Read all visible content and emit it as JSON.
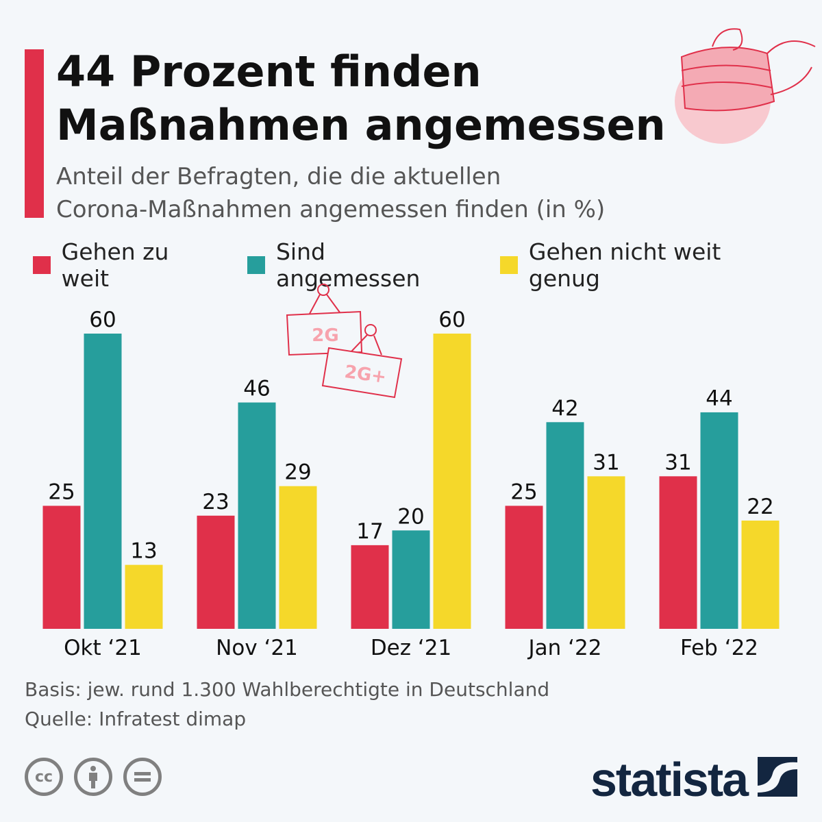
{
  "header": {
    "title_line1": "44 Prozent finden",
    "title_line2": "Maßnahmen angemessen",
    "subtitle_line1": "Anteil der Befragten, die die aktuellen",
    "subtitle_line2": "Corona-Maßnahmen angemessen finden (in %)"
  },
  "illustration": {
    "sign1": "2G",
    "sign2": "2G+"
  },
  "chart_data": {
    "type": "bar",
    "categories": [
      "Okt ‘21",
      "Nov ‘21",
      "Dez ‘21",
      "Jan ‘22",
      "Feb ‘22"
    ],
    "series": [
      {
        "name": "Gehen zu weit",
        "color": "#e0304a",
        "values": [
          25,
          23,
          17,
          25,
          31
        ]
      },
      {
        "name": "Sind angemessen",
        "color": "#269e9c",
        "values": [
          60,
          46,
          20,
          42,
          44
        ]
      },
      {
        "name": "Gehen nicht weit genug",
        "color": "#f5d82a",
        "values": [
          13,
          29,
          60,
          31,
          22
        ]
      }
    ],
    "ylim": [
      0,
      60
    ],
    "grid": false,
    "legend": "top"
  },
  "footer": {
    "basis": "Basis: jew. rund 1.300 Wahlberechtigte in Deutschland",
    "source": "Quelle: Infratest dimap",
    "cc": "cc",
    "logo": "statista"
  }
}
